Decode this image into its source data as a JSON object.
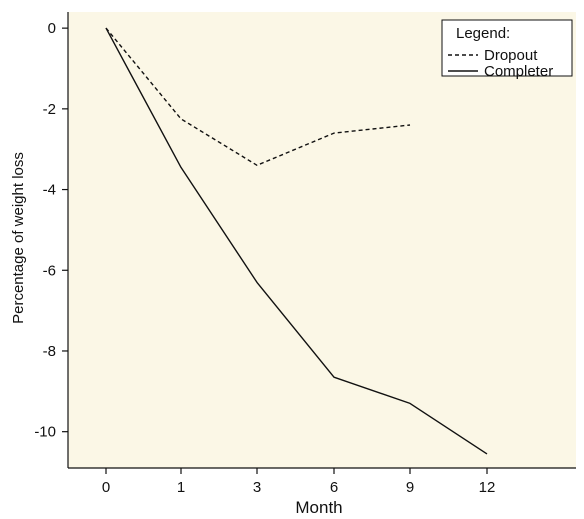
{
  "chart_data": {
    "type": "line",
    "categories": [
      "0",
      "1",
      "3",
      "6",
      "9",
      "12"
    ],
    "series": [
      {
        "name": "Dropout",
        "style": "dashed",
        "values": [
          0,
          -2.25,
          -3.4,
          -2.6,
          -2.4,
          null
        ]
      },
      {
        "name": "Completer",
        "style": "solid",
        "values": [
          0,
          -3.45,
          -6.3,
          -8.65,
          -9.3,
          -10.55
        ]
      }
    ],
    "xlabel": "Month",
    "ylabel": "Percentage of weight loss",
    "ylim": [
      -10.9,
      0.4
    ],
    "yticks": [
      0,
      -2,
      -4,
      -6,
      -8,
      -10
    ],
    "legend": {
      "title": "Legend:",
      "position": "top-right"
    },
    "grid": false,
    "colors": {
      "plot_background": "#fbf7e6",
      "line": "#111111"
    }
  }
}
